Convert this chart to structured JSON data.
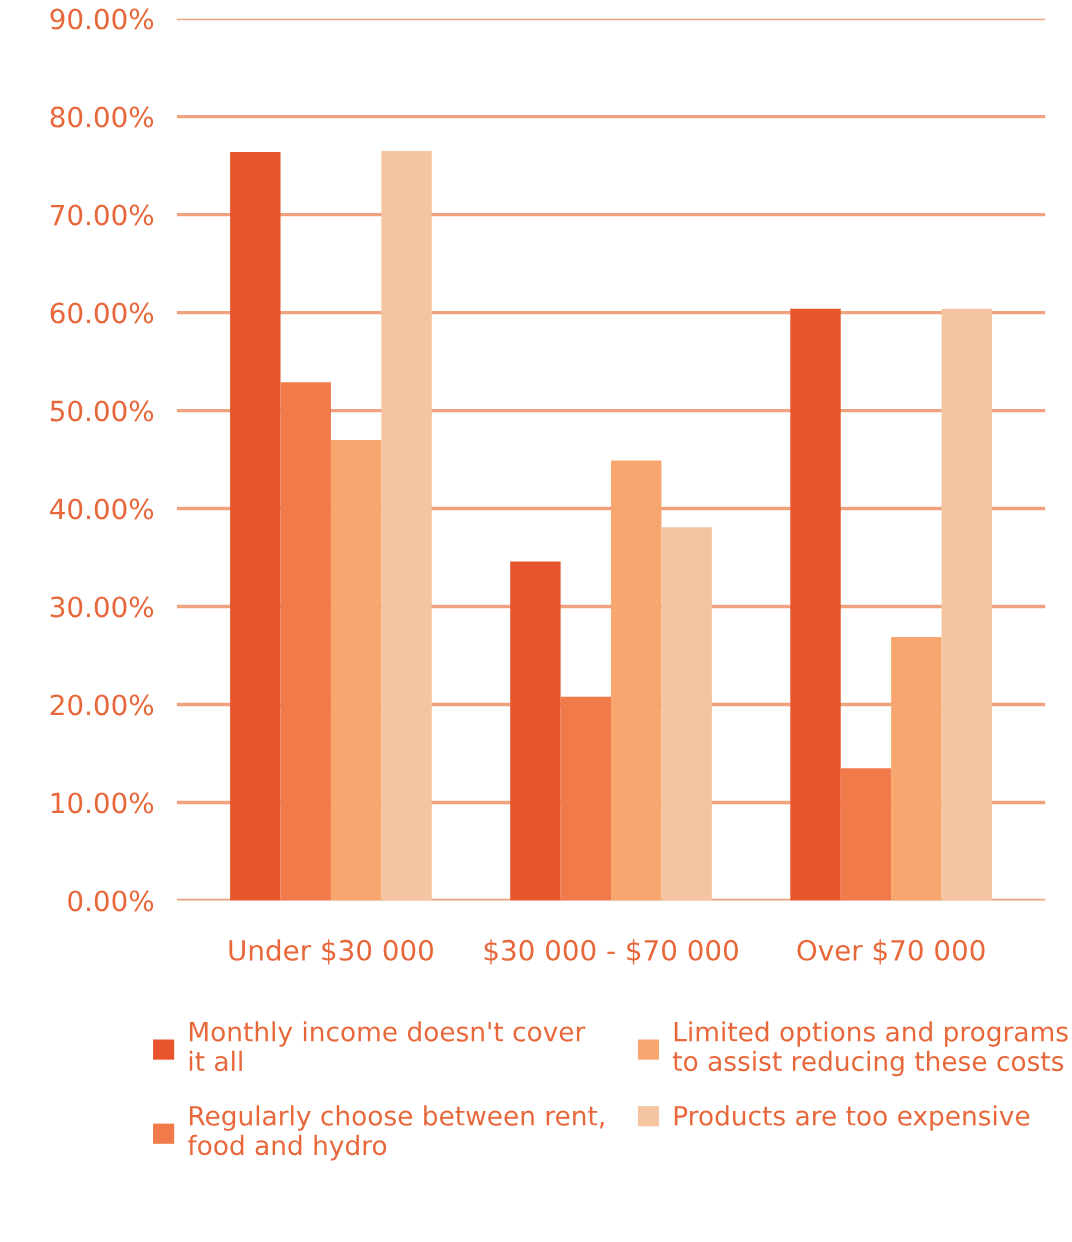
{
  "chart_data": {
    "type": "bar",
    "categories": [
      "Under $30 000",
      "$30 000 - $70 000",
      "Over $70 000"
    ],
    "series": [
      {
        "name": "Monthly income doesn't cover it all",
        "color": "#e8542c",
        "values": [
          76.4,
          34.6,
          60.4
        ]
      },
      {
        "name": "Regularly choose between rent, food and hydro",
        "color": "#f07a4a",
        "values": [
          52.9,
          20.8,
          13.5
        ]
      },
      {
        "name": "Limited options and programs to assist reducing these costs",
        "color": "#f6a66e",
        "values": [
          47.0,
          44.9,
          26.9
        ]
      },
      {
        "name": "Products are too expensive",
        "color": "#f5c4a0",
        "values": [
          76.5,
          38.1,
          60.4
        ]
      }
    ],
    "ylim": [
      0,
      90
    ],
    "yticks": [
      {
        "value": 0,
        "label": "0.00%"
      },
      {
        "value": 10,
        "label": "10.00%"
      },
      {
        "value": 20,
        "label": "20.00%"
      },
      {
        "value": 30,
        "label": "30.00%"
      },
      {
        "value": 40,
        "label": "40.00%"
      },
      {
        "value": 50,
        "label": "50.00%"
      },
      {
        "value": 60,
        "label": "60.00%"
      },
      {
        "value": 70,
        "label": "70.00%"
      },
      {
        "value": 80,
        "label": "80.00%"
      },
      {
        "value": 90,
        "label": "90.00%"
      }
    ],
    "grid": "y",
    "legend": "bottom"
  }
}
